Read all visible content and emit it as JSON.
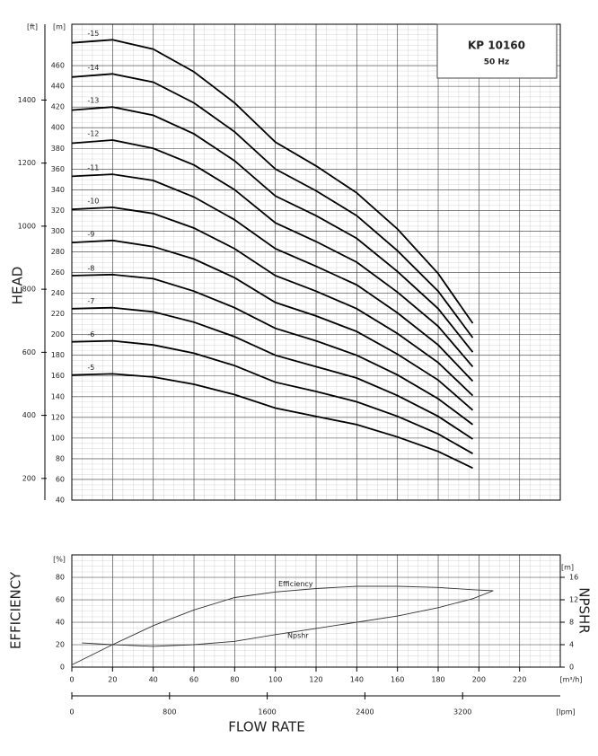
{
  "chart_data": [
    {
      "type": "line",
      "title": "KP 10160",
      "subtitle": "50 Hz",
      "ylabel": "HEAD",
      "yunit": "[m]",
      "y2unit": "[ft]",
      "xlim": [
        0,
        240
      ],
      "ylim": [
        40,
        500
      ],
      "yticks": [
        40,
        60,
        80,
        100,
        120,
        140,
        160,
        180,
        200,
        220,
        240,
        260,
        280,
        300,
        320,
        340,
        360,
        380,
        400,
        420,
        440,
        460
      ],
      "y2lim": [
        131.2,
        1640.4
      ],
      "y2ticks": [
        200,
        400,
        600,
        800,
        1000,
        1200,
        1400
      ],
      "grid": true,
      "x": [
        0,
        20,
        40,
        60,
        80,
        100,
        120,
        140,
        160,
        180,
        197
      ],
      "series": [
        {
          "name": "-15",
          "color": "#000",
          "values": [
            482,
            485,
            476,
            454,
            424,
            386,
            363,
            337,
            302,
            259,
            211
          ]
        },
        {
          "name": "-14",
          "color": "#000",
          "values": [
            449,
            452,
            444,
            424,
            396,
            360,
            339,
            315,
            281,
            242,
            197
          ]
        },
        {
          "name": "-13",
          "color": "#000",
          "values": [
            417,
            420,
            412,
            394,
            368,
            334,
            315,
            293,
            261,
            225,
            183
          ]
        },
        {
          "name": "-12",
          "color": "#000",
          "values": [
            385,
            388,
            380,
            364,
            340,
            308,
            290,
            270,
            241,
            208,
            169
          ]
        },
        {
          "name": "-11",
          "color": "#000",
          "values": [
            353,
            355,
            349,
            333,
            311,
            283,
            266,
            248,
            221,
            190,
            155
          ]
        },
        {
          "name": "-10",
          "color": "#000",
          "values": [
            321,
            323,
            317,
            303,
            283,
            257,
            242,
            225,
            201,
            173,
            141
          ]
        },
        {
          "name": "-9",
          "color": "#000",
          "values": [
            289,
            291,
            285,
            273,
            255,
            231,
            218,
            203,
            181,
            156,
            127
          ]
        },
        {
          "name": "-8",
          "color": "#000",
          "values": [
            257,
            258,
            254,
            242,
            226,
            206,
            194,
            180,
            161,
            138,
            113
          ]
        },
        {
          "name": "-7",
          "color": "#000",
          "values": [
            225,
            226,
            222,
            212,
            198,
            180,
            169,
            158,
            141,
            121,
            99
          ]
        },
        {
          "name": "-6",
          "color": "#000",
          "values": [
            193,
            194,
            190,
            182,
            170,
            154,
            145,
            135,
            121,
            104,
            85
          ]
        },
        {
          "name": "-5",
          "color": "#000",
          "values": [
            161,
            162,
            159,
            152,
            142,
            129,
            121,
            113,
            101,
            87,
            71
          ]
        }
      ]
    },
    {
      "type": "line",
      "ylabel": "EFFICIENCY",
      "yunit": "[%]",
      "y2label": "NPSHR",
      "y2unit": "[m]",
      "xlabel": "FLOW RATE",
      "xunit": "[m³/h]",
      "x2unit": "[lpm]",
      "xlim": [
        0,
        240
      ],
      "xticks": [
        0,
        20,
        40,
        60,
        80,
        100,
        120,
        140,
        160,
        180,
        200,
        220
      ],
      "x2lim": [
        0,
        4000
      ],
      "x2ticks": [
        0,
        800,
        1600,
        2400,
        3200
      ],
      "ylim": [
        0,
        100
      ],
      "yticks": [
        0,
        20,
        40,
        60,
        80
      ],
      "y2lim": [
        0,
        20
      ],
      "y2ticks": [
        0,
        4,
        8,
        12,
        16
      ],
      "grid": true,
      "series": [
        {
          "name": "Efficiency",
          "color": "#333",
          "x": [
            0,
            20,
            40,
            60,
            80,
            100,
            120,
            140,
            160,
            180,
            197,
            207
          ],
          "values": [
            2,
            20,
            37,
            51,
            62,
            67,
            70,
            72,
            72,
            71,
            69,
            68
          ]
        },
        {
          "name": "Npshr",
          "color": "#333",
          "axis": "y2",
          "x": [
            5,
            20,
            40,
            60,
            80,
            100,
            120,
            140,
            160,
            180,
            197,
            207
          ],
          "values": [
            4.3,
            4,
            3.7,
            4,
            4.6,
            5.8,
            6.9,
            8,
            9.1,
            10.6,
            12.2,
            13.6
          ]
        }
      ]
    }
  ]
}
